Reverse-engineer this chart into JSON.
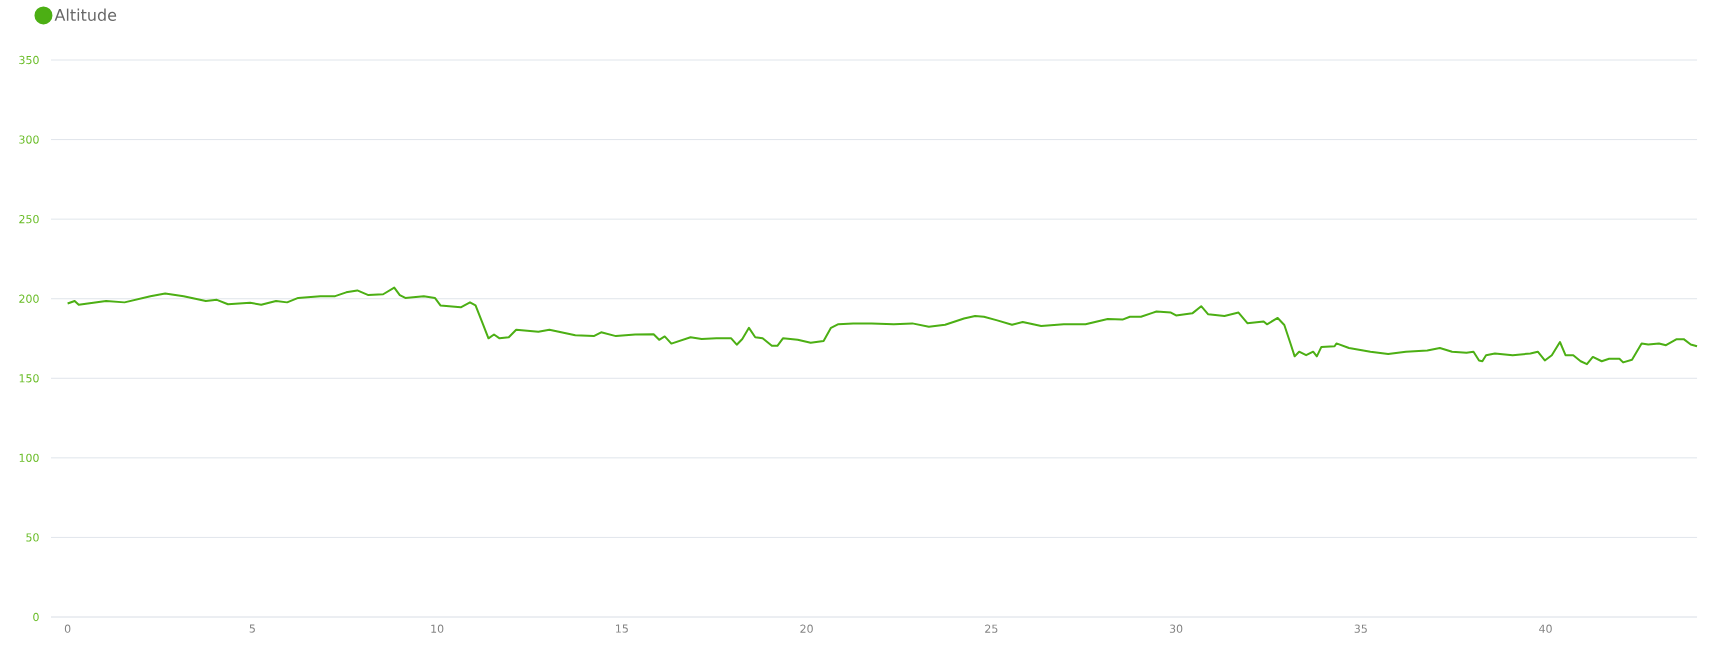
{
  "chart_data": {
    "type": "line",
    "x": [
      0.0,
      0.19,
      0.3,
      1.04,
      1.54,
      2.24,
      2.64,
      3.14,
      3.74,
      4.04,
      4.34,
      4.94,
      5.24,
      5.64,
      5.94,
      6.24,
      6.84,
      7.24,
      7.54,
      7.84,
      8.14,
      8.54,
      8.84,
      8.99,
      9.14,
      9.64,
      9.94,
      10.09,
      10.64,
      10.89,
      11.04,
      11.24,
      11.39,
      11.54,
      11.69,
      11.94,
      12.14,
      12.74,
      13.04,
      13.74,
      14.24,
      14.44,
      14.84,
      15.36,
      15.86,
      16.01,
      16.16,
      16.34,
      16.86,
      17.16,
      17.56,
      17.96,
      18.11,
      18.26,
      18.44,
      18.61,
      18.81,
      19.06,
      19.21,
      19.36,
      19.76,
      20.11,
      20.46,
      20.66,
      20.86,
      21.26,
      21.76,
      22.36,
      22.86,
      23.31,
      23.75,
      24.26,
      24.56,
      24.8,
      25.16,
      25.56,
      25.85,
      26.35,
      26.96,
      27.55,
      28.15,
      28.55,
      28.75,
      29.05,
      29.36,
      29.47,
      29.86,
      30.0,
      30.44,
      30.68,
      30.87,
      31.31,
      31.69,
      31.93,
      32.37,
      32.46,
      32.75,
      32.93,
      33.09,
      33.21,
      33.33,
      33.52,
      33.71,
      33.81,
      33.93,
      34.29,
      34.34,
      34.68,
      35.26,
      35.74,
      36.22,
      36.8,
      37.14,
      37.47,
      37.86,
      38.05,
      38.2,
      38.29,
      38.39,
      38.63,
      39.11,
      39.59,
      39.79,
      39.98,
      40.17,
      40.39,
      40.54,
      40.75,
      40.95,
      41.12,
      41.28,
      41.52,
      41.72,
      42.0,
      42.1,
      42.34,
      42.6,
      42.78,
      43.07,
      43.26,
      43.55,
      43.74,
      43.93,
      44.1
    ],
    "series": [
      {
        "name": "Altitude",
        "color": "#4caf14",
        "values": [
          197,
          198.6,
          196.2,
          198.6,
          197.7,
          201.6,
          203.3,
          201.6,
          198.6,
          199.3,
          196.5,
          197.4,
          196.2,
          198.6,
          197.7,
          200.5,
          201.6,
          201.6,
          204,
          205.2,
          202.3,
          202.8,
          207,
          202.3,
          200.5,
          201.6,
          200.5,
          195.8,
          194.6,
          197.7,
          195.8,
          184,
          175.1,
          177.5,
          175.1,
          175.8,
          180.5,
          179.3,
          180.5,
          177,
          176.5,
          178.9,
          176.5,
          177.5,
          177.7,
          174.2,
          176.3,
          171.8,
          175.8,
          174.7,
          175.1,
          175.1,
          171.1,
          174.7,
          181.7,
          175.8,
          175.1,
          170.4,
          170.4,
          175.1,
          174.2,
          172.3,
          173.5,
          181.7,
          184,
          184.5,
          184.5,
          184,
          184.5,
          182.4,
          183.6,
          187.6,
          189.2,
          188.7,
          186.4,
          183.6,
          185.4,
          182.9,
          184,
          184,
          187.3,
          186.9,
          188.7,
          188.7,
          191.1,
          192,
          191.3,
          189.5,
          190.8,
          195.3,
          190.2,
          189.1,
          191.3,
          184.6,
          185.7,
          183.9,
          187.9,
          183.5,
          172.3,
          163.8,
          166.7,
          164.5,
          166.7,
          163.8,
          169.6,
          170.1,
          171.9,
          169,
          166.7,
          165.2,
          166.7,
          167.4,
          169,
          166.7,
          166.1,
          166.7,
          161.2,
          160.7,
          164.5,
          165.6,
          164.5,
          165.6,
          166.7,
          161.2,
          164.5,
          172.8,
          164.5,
          164.5,
          160.7,
          158.9,
          163.4,
          160.7,
          162.3,
          162.3,
          160,
          161.6,
          171.9,
          171.2,
          171.9,
          170.8,
          174.6,
          174.6,
          171.2,
          170.1
        ]
      }
    ],
    "xlim": [
      -0.45,
      44.1
    ],
    "ylim": [
      0,
      350
    ],
    "xticks": [
      0,
      5,
      10,
      15,
      20,
      25,
      30,
      35,
      40
    ],
    "yticks": [
      0,
      50,
      100,
      150,
      200,
      250,
      300,
      350
    ],
    "grid": "y",
    "legend": "top left"
  }
}
